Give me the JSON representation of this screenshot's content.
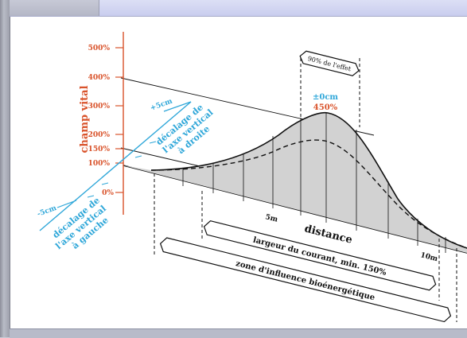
{
  "colors": {
    "vital_axis": "#d9532b",
    "shift_axis": "#2fa7d9",
    "curve_fill": "#d2d2d2",
    "line": "#111111",
    "background": "#ffffff"
  },
  "vertical_axis": {
    "title": "champ vital",
    "ticks": [
      "500%",
      "400%",
      "300%",
      "200%",
      "150%",
      "100%",
      "0%"
    ]
  },
  "shift_axis": {
    "right_tick": "+5cm",
    "left_tick": "-5cm",
    "right_label": [
      "décalage de",
      "l'axe vertical",
      "à droite"
    ],
    "left_label": [
      "décalage de",
      "l'axe vertical",
      "à gauche"
    ]
  },
  "peak": {
    "shift_label": "±0cm",
    "value_label": "450%",
    "effect_label": "90% de l'effet"
  },
  "distance_axis": {
    "title": "distance",
    "ticks": [
      "5m",
      "10m"
    ]
  },
  "bands": {
    "current_width": "largeur du courant, min. 150%",
    "influence_zone": "zone d'influence bioénergétique"
  }
}
